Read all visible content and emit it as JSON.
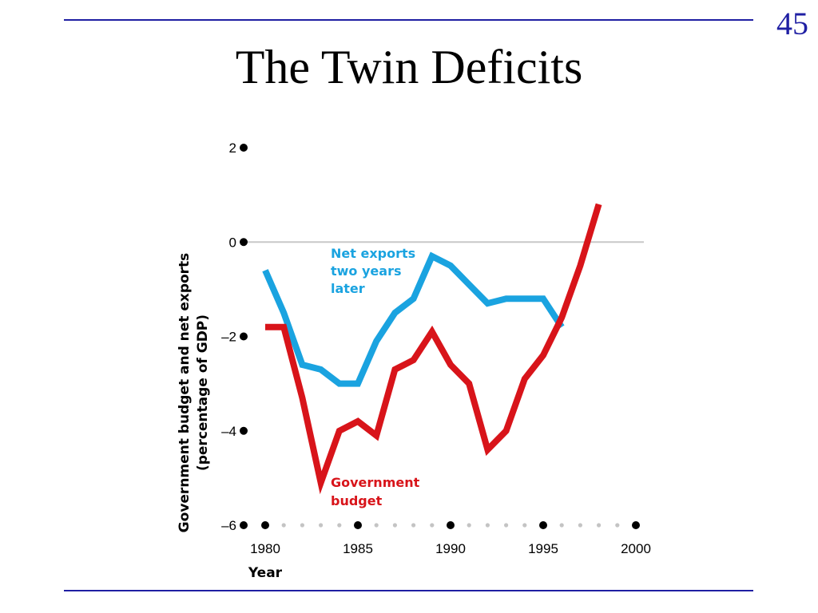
{
  "slide": {
    "number": "45",
    "title": "The Twin Deficits"
  },
  "chart_data": {
    "type": "line",
    "xlabel": "Year",
    "ylabel": "Government budget and net exports",
    "ylabel_sub": "(percentage of GDP)",
    "xlim": [
      1979,
      2001
    ],
    "ylim": [
      -6,
      2
    ],
    "x_ticks": [
      1980,
      1985,
      1990,
      1995,
      2000
    ],
    "y_ticks": [
      2,
      0,
      -2,
      -4,
      -6
    ],
    "y_tick_labels": [
      "2",
      "0",
      "–2",
      "–4",
      "–6"
    ],
    "zero_line": true,
    "series": [
      {
        "name": "Net exports two years later",
        "label_lines": [
          "Net exports",
          "two years",
          "later"
        ],
        "color": "#1aa3e0",
        "x": [
          1980,
          1981,
          1982,
          1983,
          1984,
          1985,
          1986,
          1987,
          1988,
          1989,
          1990,
          1991,
          1992,
          1993,
          1994,
          1995,
          1996
        ],
        "y": [
          -0.6,
          -1.5,
          -2.6,
          -2.7,
          -3.0,
          -3.0,
          -2.1,
          -1.5,
          -1.2,
          -0.3,
          -0.5,
          -0.9,
          -1.3,
          -1.2,
          -1.2,
          -1.2,
          -1.8
        ]
      },
      {
        "name": "Government budget",
        "label_lines": [
          "Government",
          "budget"
        ],
        "color": "#d8141a",
        "x": [
          1980,
          1981,
          1982,
          1983,
          1984,
          1985,
          1986,
          1987,
          1988,
          1989,
          1990,
          1991,
          1992,
          1993,
          1994,
          1995,
          1996,
          1997,
          1998
        ],
        "y": [
          -1.8,
          -1.8,
          -3.3,
          -5.1,
          -4.0,
          -3.8,
          -4.1,
          -2.7,
          -2.5,
          -1.9,
          -2.6,
          -3.0,
          -4.4,
          -4.0,
          -2.9,
          -2.4,
          -1.6,
          -0.5,
          0.8
        ]
      }
    ]
  }
}
